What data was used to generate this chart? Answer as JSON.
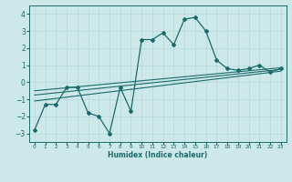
{
  "xlabel": "Humidex (Indice chaleur)",
  "ylabel": "",
  "bg_color": "#cde8e8",
  "line_color": "#1a6b6b",
  "grid_color": "#b8d8d8",
  "xlim": [
    -0.5,
    23.5
  ],
  "ylim": [
    -3.5,
    4.5
  ],
  "xticks": [
    0,
    1,
    2,
    3,
    4,
    5,
    6,
    7,
    8,
    9,
    10,
    11,
    12,
    13,
    14,
    15,
    16,
    17,
    18,
    19,
    20,
    21,
    22,
    23
  ],
  "yticks": [
    -3,
    -2,
    -1,
    0,
    1,
    2,
    3,
    4
  ],
  "main_x": [
    0,
    1,
    2,
    3,
    4,
    5,
    6,
    7,
    8,
    9,
    10,
    11,
    12,
    13,
    14,
    15,
    16,
    17,
    18,
    19,
    20,
    21,
    22,
    23
  ],
  "main_y": [
    -2.8,
    -1.3,
    -1.3,
    -0.3,
    -0.3,
    -1.8,
    -2.0,
    -3.0,
    -0.3,
    -1.7,
    2.5,
    2.5,
    2.9,
    2.2,
    3.7,
    3.8,
    3.0,
    1.3,
    0.8,
    0.7,
    0.8,
    1.0,
    0.6,
    0.8
  ],
  "line1_x": [
    0,
    23
  ],
  "line1_y": [
    -1.1,
    0.65
  ],
  "line2_x": [
    0,
    23
  ],
  "line2_y": [
    -0.75,
    0.75
  ],
  "line3_x": [
    0,
    23
  ],
  "line3_y": [
    -0.5,
    0.85
  ]
}
